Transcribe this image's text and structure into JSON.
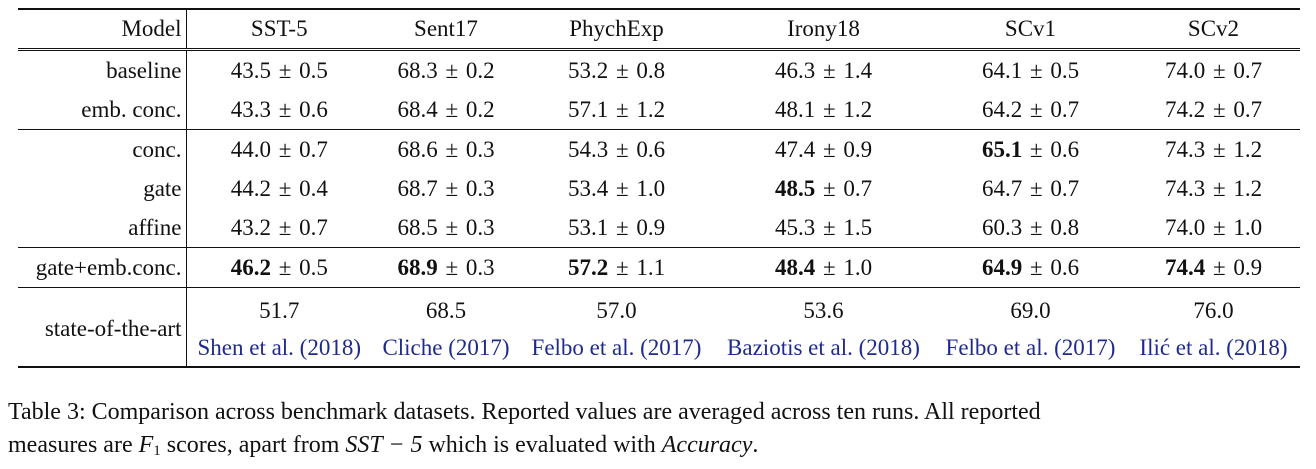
{
  "table": {
    "header": {
      "model": "Model",
      "columns": [
        "SST-5",
        "Sent17",
        "PhychExp",
        "Irony18",
        "SCv1",
        "SCv2"
      ]
    },
    "groups": [
      {
        "rows": [
          {
            "model": "baseline",
            "cells": [
              {
                "mean": "43.5",
                "std": "0.5",
                "bold": false
              },
              {
                "mean": "68.3",
                "std": "0.2",
                "bold": false
              },
              {
                "mean": "53.2",
                "std": "0.8",
                "bold": false
              },
              {
                "mean": "46.3",
                "std": "1.4",
                "bold": false
              },
              {
                "mean": "64.1",
                "std": "0.5",
                "bold": false
              },
              {
                "mean": "74.0",
                "std": "0.7",
                "bold": false
              }
            ]
          },
          {
            "model": "emb. conc.",
            "cells": [
              {
                "mean": "43.3",
                "std": "0.6",
                "bold": false
              },
              {
                "mean": "68.4",
                "std": "0.2",
                "bold": false
              },
              {
                "mean": "57.1",
                "std": "1.2",
                "bold": false
              },
              {
                "mean": "48.1",
                "std": "1.2",
                "bold": false
              },
              {
                "mean": "64.2",
                "std": "0.7",
                "bold": false
              },
              {
                "mean": "74.2",
                "std": "0.7",
                "bold": false
              }
            ]
          }
        ]
      },
      {
        "rows": [
          {
            "model": "conc.",
            "cells": [
              {
                "mean": "44.0",
                "std": "0.7",
                "bold": false
              },
              {
                "mean": "68.6",
                "std": "0.3",
                "bold": false
              },
              {
                "mean": "54.3",
                "std": "0.6",
                "bold": false
              },
              {
                "mean": "47.4",
                "std": "0.9",
                "bold": false
              },
              {
                "mean": "65.1",
                "std": "0.6",
                "bold": true
              },
              {
                "mean": "74.3",
                "std": "1.2",
                "bold": false
              }
            ]
          },
          {
            "model": "gate",
            "cells": [
              {
                "mean": "44.2",
                "std": "0.4",
                "bold": false
              },
              {
                "mean": "68.7",
                "std": "0.3",
                "bold": false
              },
              {
                "mean": "53.4",
                "std": "1.0",
                "bold": false
              },
              {
                "mean": "48.5",
                "std": "0.7",
                "bold": true
              },
              {
                "mean": "64.7",
                "std": "0.7",
                "bold": false
              },
              {
                "mean": "74.3",
                "std": "1.2",
                "bold": false
              }
            ]
          },
          {
            "model": "affine",
            "cells": [
              {
                "mean": "43.2",
                "std": "0.7",
                "bold": false
              },
              {
                "mean": "68.5",
                "std": "0.3",
                "bold": false
              },
              {
                "mean": "53.1",
                "std": "0.9",
                "bold": false
              },
              {
                "mean": "45.3",
                "std": "1.5",
                "bold": false
              },
              {
                "mean": "60.3",
                "std": "0.8",
                "bold": false
              },
              {
                "mean": "74.0",
                "std": "1.0",
                "bold": false
              }
            ]
          }
        ]
      },
      {
        "rows": [
          {
            "model": "gate+emb.conc.",
            "cells": [
              {
                "mean": "46.2",
                "std": "0.5",
                "bold": true
              },
              {
                "mean": "68.9",
                "std": "0.3",
                "bold": true
              },
              {
                "mean": "57.2",
                "std": "1.1",
                "bold": true
              },
              {
                "mean": "48.4",
                "std": "1.0",
                "bold": true
              },
              {
                "mean": "64.9",
                "std": "0.6",
                "bold": true
              },
              {
                "mean": "74.4",
                "std": "0.9",
                "bold": true
              }
            ]
          }
        ]
      }
    ],
    "pm_symbol": "±",
    "state_of_the_art": {
      "model": "state-of-the-art",
      "values": [
        "51.7",
        "68.5",
        "57.0",
        "53.6",
        "69.0",
        "76.0"
      ],
      "citations": [
        "Shen et al. (2018)",
        "Cliche (2017)",
        "Felbo et al. (2017)",
        "Baziotis et al. (2018)",
        "Felbo et al. (2017)",
        "Ilić et al. (2018)"
      ]
    }
  },
  "caption": {
    "line1": "Table 3:  Comparison across benchmark datasets.  Reported values are averaged across ten runs.  All reported",
    "line2_a": "measures are ",
    "line2_f": "F",
    "line2_sub": "1",
    "line2_b": " scores, apart from ",
    "line2_sst": "SST − 5",
    "line2_c": " which is evaluated with ",
    "line2_acc": "Accuracy",
    "line2_d": "."
  }
}
